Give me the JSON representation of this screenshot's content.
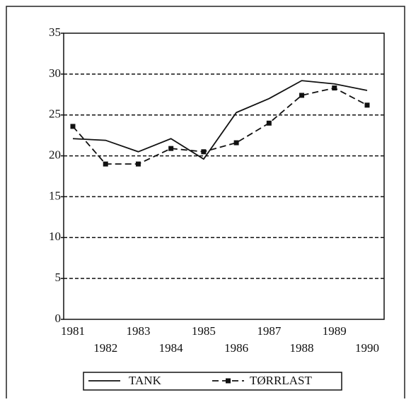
{
  "chart_data": {
    "type": "line",
    "categories": [
      "1981",
      "1982",
      "1983",
      "1984",
      "1985",
      "1986",
      "1987",
      "1988",
      "1989",
      "1990"
    ],
    "series": [
      {
        "name": "TANK",
        "color": "#111111",
        "values": [
          22.1,
          21.9,
          20.5,
          22.1,
          19.6,
          25.3,
          27.0,
          29.2,
          28.8,
          28.0
        ]
      },
      {
        "name": "TØRRLAST",
        "color": "#111111",
        "values": [
          23.6,
          19.0,
          19.0,
          20.9,
          20.5,
          21.6,
          24.0,
          27.4,
          28.3,
          26.2
        ]
      }
    ],
    "ylim": [
      0,
      35
    ],
    "yticks": [
      0,
      5,
      10,
      15,
      20,
      25,
      30,
      35
    ],
    "grid": true,
    "legend": "bottom"
  }
}
